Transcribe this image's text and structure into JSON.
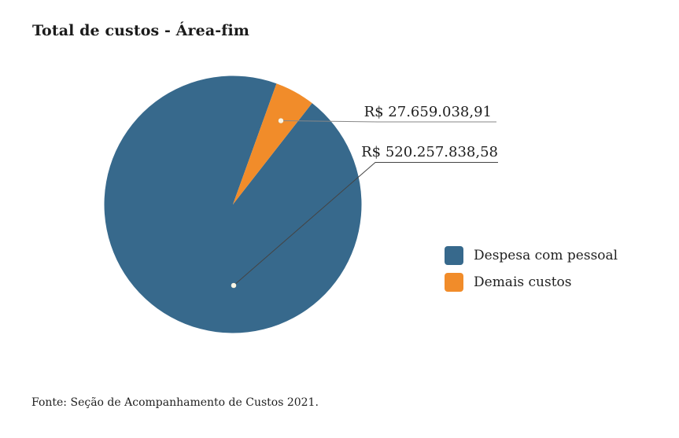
{
  "title": "Total de custos - Área-fim",
  "source_note": "Fonte: Seção de Acompanhamento de Custos 2021.",
  "legend": {
    "items": [
      {
        "label": "Despesa com pessoal",
        "color": "#37698C"
      },
      {
        "label": "Demais custos",
        "color": "#F18C2A"
      }
    ]
  },
  "chart_data": {
    "type": "pie",
    "title": "Total de custos - Área-fim",
    "categories": [
      "Despesa com pessoal",
      "Demais custos"
    ],
    "values": [
      520257838.58,
      27659038.91
    ],
    "value_labels": [
      "R$ 520.257.838,58",
      "R$ 27.659.038,91"
    ],
    "colors": [
      "#37698C",
      "#F18C2A"
    ],
    "currency_unit": "R$",
    "start_angle_deg": 38,
    "direction": "clockwise",
    "legend_position": "right",
    "annotations": [
      {
        "slice": "Demais custos",
        "text": "R$ 27.659.038,91"
      },
      {
        "slice": "Despesa com pessoal",
        "text": "R$ 520.257.838,58"
      }
    ]
  }
}
